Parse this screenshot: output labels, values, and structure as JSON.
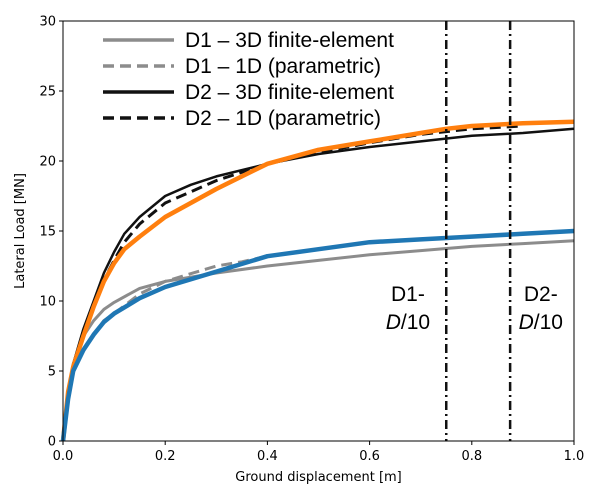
{
  "chart_data": {
    "type": "line",
    "title": "",
    "xlabel": "Ground displacement [m]",
    "ylabel": "Lateral Load [MN]",
    "xlim": [
      0,
      1.0
    ],
    "ylim": [
      0,
      30
    ],
    "xticks": [
      "0.0",
      "0.2",
      "0.4",
      "0.6",
      "0.8",
      "1.0"
    ],
    "xtick_values": [
      0,
      0.2,
      0.4,
      0.6,
      0.8,
      1.0
    ],
    "yticks": [
      "0",
      "5",
      "10",
      "15",
      "20",
      "25",
      "30"
    ],
    "ytick_values": [
      0,
      5,
      10,
      15,
      20,
      25,
      30
    ],
    "grid": false,
    "legend_position": "top-left",
    "legend": [
      {
        "label": "D1 – 3D finite-element",
        "color": "#8c8c8c",
        "style": "solid"
      },
      {
        "label": "D1 – 1D (parametric)",
        "color": "#8c8c8c",
        "style": "dashed"
      },
      {
        "label": "D2 – 3D finite-element",
        "color": "#111111",
        "style": "solid"
      },
      {
        "label": "D2 – 1D (parametric)",
        "color": "#111111",
        "style": "dashed"
      }
    ],
    "series": [
      {
        "name": "D1 – 3D finite-element",
        "color": "#8c8c8c",
        "style": "solid",
        "width": 3,
        "x": [
          0,
          0.01,
          0.02,
          0.04,
          0.06,
          0.08,
          0.1,
          0.15,
          0.2,
          0.3,
          0.4,
          0.5,
          0.6,
          0.7,
          0.8,
          0.9,
          1.0
        ],
        "y": [
          0,
          3.5,
          5.5,
          7.5,
          8.6,
          9.4,
          9.9,
          10.9,
          11.4,
          12.0,
          12.5,
          12.9,
          13.3,
          13.6,
          13.9,
          14.1,
          14.3
        ]
      },
      {
        "name": "D1 – 1D (parametric)",
        "color": "#8c8c8c",
        "style": "dashed",
        "width": 3,
        "x": [
          0.02,
          0.04,
          0.06,
          0.08,
          0.1,
          0.15,
          0.2,
          0.3,
          0.35,
          0.4
        ],
        "y": [
          5.3,
          6.5,
          7.6,
          8.6,
          9.1,
          10.5,
          11.4,
          12.5,
          12.8,
          13.2
        ]
      },
      {
        "name": "D2 – 3D finite-element",
        "color": "#111111",
        "style": "solid",
        "width": 2.5,
        "x": [
          0,
          0.01,
          0.02,
          0.04,
          0.06,
          0.08,
          0.1,
          0.12,
          0.15,
          0.2,
          0.25,
          0.3,
          0.4,
          0.5,
          0.6,
          0.7,
          0.8,
          0.9,
          1.0
        ],
        "y": [
          0,
          3.5,
          5.5,
          8.0,
          10.0,
          12.0,
          13.5,
          14.8,
          16.0,
          17.5,
          18.3,
          18.9,
          19.8,
          20.5,
          21.0,
          21.4,
          21.8,
          22.0,
          22.3
        ]
      },
      {
        "name": "D2 – 1D (parametric)",
        "color": "#111111",
        "style": "dashed",
        "width": 3,
        "x": [
          0.02,
          0.04,
          0.06,
          0.08,
          0.1,
          0.12,
          0.15,
          0.2,
          0.3,
          0.4,
          0.5,
          0.6,
          0.7,
          0.8,
          0.9
        ],
        "y": [
          5.3,
          7.5,
          9.5,
          11.5,
          12.9,
          14.2,
          15.5,
          17.0,
          18.6,
          19.8,
          20.6,
          21.3,
          21.9,
          22.3,
          22.5
        ]
      },
      {
        "name": "",
        "color": "#ff7f0e",
        "style": "solid",
        "width": 4.5,
        "x": [
          0,
          0.01,
          0.02,
          0.04,
          0.06,
          0.08,
          0.1,
          0.12,
          0.15,
          0.2,
          0.3,
          0.4,
          0.5,
          0.6,
          0.7,
          0.75,
          0.8,
          0.9,
          1.0
        ],
        "y": [
          0,
          3.5,
          5.3,
          7.5,
          9.6,
          11.4,
          12.7,
          13.7,
          14.6,
          16.0,
          18.0,
          19.8,
          20.8,
          21.4,
          22.0,
          22.3,
          22.5,
          22.7,
          22.8
        ]
      },
      {
        "name": "",
        "color": "#1f77b4",
        "style": "solid",
        "width": 4.5,
        "x": [
          0,
          0.01,
          0.02,
          0.04,
          0.06,
          0.08,
          0.1,
          0.15,
          0.2,
          0.3,
          0.4,
          0.5,
          0.6,
          0.7,
          0.8,
          0.9,
          1.0
        ],
        "y": [
          0,
          3.0,
          5.0,
          6.5,
          7.6,
          8.5,
          9.1,
          10.2,
          11.0,
          12.1,
          13.2,
          13.7,
          14.2,
          14.4,
          14.6,
          14.8,
          15.0
        ]
      }
    ],
    "vlines": [
      {
        "x": 0.75,
        "style": "dashdot",
        "color": "#111111"
      },
      {
        "x": 0.875,
        "style": "dashdot",
        "color": "#111111"
      }
    ],
    "annotations": [
      {
        "line1": "D1-",
        "line2_italic": "D",
        "line2_rest": "/10",
        "x": 0.675,
        "y": 9.0
      },
      {
        "line1": "D2-",
        "line2_italic": "D",
        "line2_rest": "/10",
        "x": 0.935,
        "y": 9.0
      }
    ]
  }
}
